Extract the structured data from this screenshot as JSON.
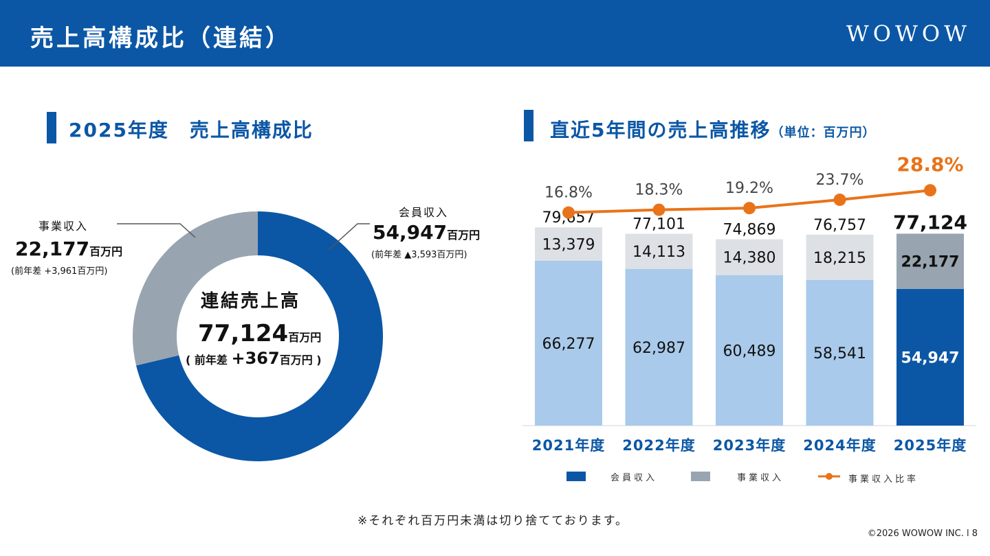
{
  "header": {
    "title": "売上高構成比（連結）",
    "logo": "WOWOW"
  },
  "left_section": {
    "title": "2025年度　売上高構成比",
    "center_label": "連結売上高",
    "center_value": "77,124",
    "center_unit": "百万円",
    "center_diff_prefix": "( 前年差 ",
    "center_diff_value": "+367",
    "center_diff_unit": "百万円 )",
    "business": {
      "label": "事業収入",
      "value": "22,177",
      "unit": "百万円",
      "diff": "(前年差 +3,961百万円)"
    },
    "member": {
      "label": "会員収入",
      "value": "54,947",
      "unit": "百万円",
      "diff": "(前年差 ▲3,593百万円)"
    }
  },
  "right_section": {
    "title": "直近5年間の売上高推移",
    "unit_note": "（単位：百万円）"
  },
  "colors": {
    "brand": "#0b57a5",
    "member_light": "#a9caea",
    "business_light": "#dde1e6",
    "business_dark": "#98a5b1",
    "ratio_line": "#e8731a"
  },
  "chart_data": [
    {
      "type": "pie",
      "categories": [
        "会員収入",
        "事業収入"
      ],
      "values": [
        54947,
        22177
      ],
      "total": 77124
    },
    {
      "type": "bar",
      "stacked": true,
      "categories": [
        "2021年度",
        "2022年度",
        "2023年度",
        "2024年度",
        "2025年度"
      ],
      "series": [
        {
          "name": "会員収入",
          "values": [
            66277,
            62987,
            60489,
            58541,
            54947
          ]
        },
        {
          "name": "事業収入",
          "values": [
            13379,
            14113,
            14380,
            18215,
            22177
          ]
        }
      ],
      "totals": [
        79657,
        77101,
        74869,
        76757,
        77124
      ],
      "line_series": {
        "name": "事業収入比率",
        "values": [
          16.8,
          18.3,
          19.2,
          23.7,
          28.8
        ],
        "unit": "%"
      },
      "ylim": [
        0,
        80000
      ],
      "grid": false,
      "legend_position": "bottom"
    }
  ],
  "legend": {
    "member": "会員収入",
    "business": "事業収入",
    "ratio": "事業収入比率"
  },
  "footnote": "※それぞれ百万円未満は切り捨てております。",
  "copyright": "©2026 WOWOW INC.  l  8"
}
